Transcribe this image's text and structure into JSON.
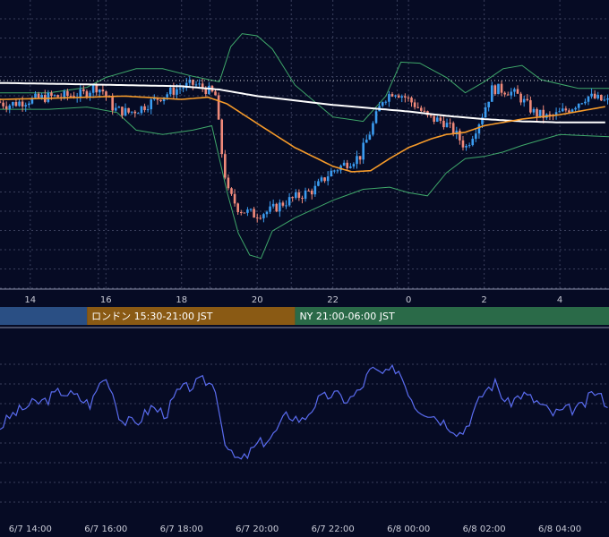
{
  "colors": {
    "background": "#060b24",
    "grid": "#3a3f5c",
    "candle_up": "#3b9cf0",
    "candle_down": "#f08a7a",
    "ma_long": "#ffffff",
    "ma_mid": "#f59a2a",
    "bollinger": "#3fa86a",
    "oscillator": "#5a6cf0",
    "session_tokyo": "#2a4f84",
    "session_london": "#8a5a14",
    "session_ny": "#2a6a48"
  },
  "chart_data": [
    {
      "type": "line",
      "name": "price-panel",
      "x_tick_labels": [
        "14",
        "16",
        "18",
        "20",
        "22",
        "0",
        "2",
        "4"
      ],
      "x_tick_hours": [
        14,
        16,
        18,
        20,
        22,
        24,
        26,
        28
      ],
      "x_range_hours": [
        13.2,
        29.3
      ],
      "y_range": [
        -100,
        100
      ],
      "grid": true,
      "candles_drawn_from": "series.price",
      "series": [
        {
          "key": "price",
          "hours": [
            13.2,
            13.5,
            14.0,
            14.5,
            15.0,
            15.5,
            15.8,
            16.0,
            16.3,
            16.7,
            17.0,
            17.5,
            18.0,
            18.4,
            18.7,
            19.0,
            19.1,
            19.3,
            19.6,
            20.0,
            20.4,
            20.8,
            21.2,
            21.6,
            22.0,
            22.5,
            22.8,
            23.1,
            23.4,
            23.7,
            24.0,
            24.3,
            24.6,
            25.0,
            25.3,
            25.6,
            26.0,
            26.3,
            26.7,
            27.0,
            27.4,
            27.8,
            28.0,
            28.4,
            28.8,
            29.3
          ],
          "values": [
            40,
            37,
            41,
            44,
            45,
            47,
            54,
            50,
            33,
            30,
            34,
            44,
            52,
            56,
            52,
            45,
            5,
            -42,
            -58,
            -63,
            -60,
            -52,
            -46,
            -40,
            -25,
            -15,
            -10,
            15,
            42,
            50,
            44,
            36,
            25,
            22,
            12,
            -2,
            25,
            52,
            50,
            45,
            30,
            25,
            28,
            35,
            45,
            40
          ]
        },
        {
          "key": "ma_long",
          "hours": [
            13.2,
            15.0,
            16.5,
            18.0,
            19.0,
            20.0,
            21.0,
            22.0,
            23.0,
            24.0,
            25.0,
            26.0,
            27.0,
            28.0,
            29.3
          ],
          "values": [
            57,
            56,
            55,
            54,
            51,
            45,
            41,
            37,
            34,
            31,
            27,
            24,
            22,
            21,
            21
          ]
        },
        {
          "key": "ma_mid",
          "hours": [
            13.2,
            14.5,
            15.5,
            16.5,
            18.0,
            18.7,
            19.2,
            20.0,
            21.0,
            22.0,
            22.5,
            23.0,
            23.5,
            24.0,
            24.6,
            25.0,
            25.5,
            26.0,
            27.0,
            28.0,
            29.3
          ],
          "values": [
            42,
            43,
            44,
            45,
            42,
            44,
            38,
            20,
            -2,
            -19,
            -24,
            -23,
            -12,
            -2,
            6,
            10,
            12,
            18,
            24,
            28,
            36
          ]
        },
        {
          "key": "bb_upper",
          "hours": [
            13.2,
            14.5,
            15.5,
            16.0,
            16.8,
            17.5,
            18.3,
            19.0,
            19.3,
            19.6,
            20.0,
            20.4,
            21.0,
            22.0,
            22.8,
            23.4,
            23.8,
            24.3,
            25.0,
            25.5,
            26.0,
            26.5,
            27.0,
            27.5,
            28.5,
            29.3
          ],
          "values": [
            48,
            48,
            53,
            62,
            70,
            70,
            63,
            58,
            90,
            102,
            100,
            88,
            55,
            26,
            22,
            45,
            76,
            75,
            62,
            48,
            58,
            70,
            73,
            60,
            52,
            52
          ]
        },
        {
          "key": "bb_lower",
          "hours": [
            13.2,
            14.5,
            15.5,
            16.3,
            16.8,
            17.5,
            18.3,
            18.8,
            19.2,
            19.5,
            19.8,
            20.1,
            20.4,
            21.0,
            22.0,
            22.8,
            23.5,
            24.0,
            24.5,
            25.0,
            25.5,
            26.0,
            26.5,
            27.0,
            28.0,
            29.3
          ],
          "values": [
            33,
            33,
            35,
            30,
            14,
            10,
            14,
            18,
            -42,
            -80,
            -100,
            -103,
            -78,
            -66,
            -50,
            -40,
            -38,
            -43,
            -46,
            -25,
            -12,
            -10,
            -6,
            0,
            10,
            8
          ]
        }
      ]
    },
    {
      "type": "line",
      "name": "oscillator-panel",
      "x_tick_labels": [
        "6/7 14:00",
        "6/7 16:00",
        "6/7 18:00",
        "6/7 20:00",
        "6/7 22:00",
        "6/8 00:00",
        "6/8 02:00",
        "6/8 04:00"
      ],
      "x_tick_hours": [
        14,
        16,
        18,
        20,
        22,
        24,
        26,
        28
      ],
      "x_range_hours": [
        13.2,
        29.3
      ],
      "y_range": [
        0,
        100
      ],
      "grid": true,
      "series": [
        {
          "key": "oscillator",
          "hours": [
            13.2,
            13.5,
            14.0,
            14.4,
            14.8,
            15.2,
            15.6,
            15.9,
            16.1,
            16.4,
            16.8,
            17.2,
            17.6,
            17.9,
            18.2,
            18.6,
            18.9,
            19.1,
            19.3,
            19.6,
            20.0,
            20.4,
            20.8,
            21.2,
            21.6,
            22.0,
            22.4,
            22.7,
            23.0,
            23.4,
            23.7,
            23.9,
            24.2,
            24.6,
            25.0,
            25.4,
            25.7,
            26.0,
            26.3,
            26.6,
            27.0,
            27.4,
            27.8,
            28.2,
            28.6,
            28.9,
            29.3
          ],
          "values": [
            45,
            54,
            62,
            65,
            72,
            68,
            62,
            82,
            78,
            50,
            48,
            60,
            55,
            72,
            75,
            80,
            75,
            40,
            24,
            20,
            32,
            38,
            55,
            50,
            65,
            70,
            65,
            72,
            88,
            84,
            90,
            78,
            60,
            55,
            48,
            40,
            55,
            72,
            78,
            62,
            70,
            64,
            55,
            58,
            60,
            72,
            62
          ]
        }
      ]
    }
  ],
  "sessions": [
    {
      "label": "",
      "start_hour": 13.2,
      "end_hour": 15.5,
      "color_key": "session_tokyo"
    },
    {
      "label": "ロンドン 15:30-21:00 JST",
      "start_hour": 15.5,
      "end_hour": 21.0,
      "color_key": "session_london"
    },
    {
      "label": "NY 21:00-06:00 JST",
      "start_hour": 21.0,
      "end_hour": 29.3,
      "color_key": "session_ny"
    }
  ]
}
